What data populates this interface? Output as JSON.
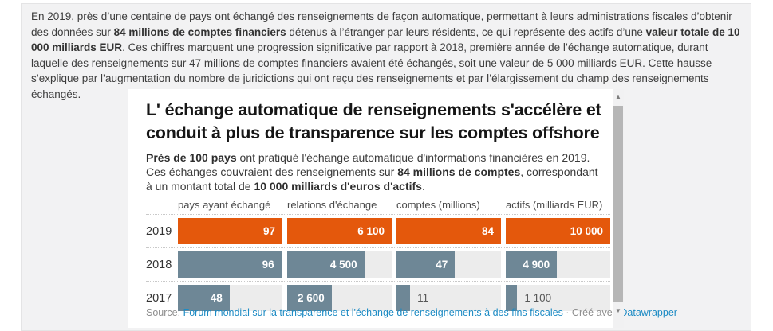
{
  "intro": {
    "seg1": "En 2019, près d’une centaine de pays ont échangé des renseignements de façon automatique, permettant à leurs administrations fiscales d’obtenir des données sur ",
    "bold1": "84 millions de comptes financiers",
    "seg2": " détenus à l’étranger par leurs résidents, ce qui représente des actifs d’une ",
    "bold2": "valeur totale de 10 000 milliards EUR",
    "seg3": ". Ces chiffres marquent une progression significative par rapport à 2018, première année de l’échange automatique, durant laquelle des renseignements sur 47 millions de comptes financiers avaient été échangés, soit une valeur de 5 000 milliards EUR. Cette hausse s’explique par l’augmentation du nombre de juridictions qui ont reçu des renseignements et par l’élargissement du champ des renseignements échangés."
  },
  "chart": {
    "title_line1": "L' échange automatique de renseignements s'accélère et",
    "title_line2": "conduit à plus de transparence sur les comptes offshore",
    "sub_bold1": "Près de 100 pays",
    "sub_seg1": " ont pratiqué l'échange automatique d'informations financières en 2019. Ces échanges couvraient des renseignements sur ",
    "sub_bold2": "84 millions de comptes",
    "sub_seg2": ", correspondant à un montant total de ",
    "sub_bold3": "10 000 milliards d'euros d'actifs",
    "sub_seg3": ".",
    "source_label": "Source: ",
    "source_link": "Forum mondial sur la transparence et l'échange de renseignements à des fins fiscales",
    "source_sep": " · Créé avec ",
    "credit_link": "Datawrapper",
    "scroll_up_glyph": "▲",
    "scroll_down_glyph": "▼"
  },
  "chart_data": {
    "type": "bar",
    "orientation": "horizontal",
    "title": "L' échange automatique de renseignements s'accélère et conduit à plus de transparence sur les comptes offshore",
    "categories": [
      "2019",
      "2018",
      "2017"
    ],
    "row_colors": [
      "#e4580c",
      "#6e8796",
      "#6e8796"
    ],
    "track_color": "#ececec",
    "legend_position": "none",
    "grid": false,
    "columns": [
      {
        "header": "pays ayant échangé",
        "max": 97,
        "values": [
          97,
          96,
          48
        ],
        "display": [
          "97",
          "96",
          "48"
        ],
        "inside": [
          true,
          true,
          true
        ]
      },
      {
        "header": "relations d'échange",
        "max": 6100,
        "values": [
          6100,
          4500,
          2600
        ],
        "display": [
          "6 100",
          "4 500",
          "2 600"
        ],
        "inside": [
          true,
          true,
          true
        ]
      },
      {
        "header": "comptes (millions)",
        "max": 84,
        "values": [
          84,
          47,
          11
        ],
        "display": [
          "84",
          "47",
          "11"
        ],
        "inside": [
          true,
          true,
          false
        ]
      },
      {
        "header": "actifs (milliards EUR)",
        "max": 10000,
        "values": [
          10000,
          4900,
          1100
        ],
        "display": [
          "10 000",
          "4 900",
          "1 100"
        ],
        "inside": [
          true,
          true,
          false
        ]
      }
    ]
  }
}
